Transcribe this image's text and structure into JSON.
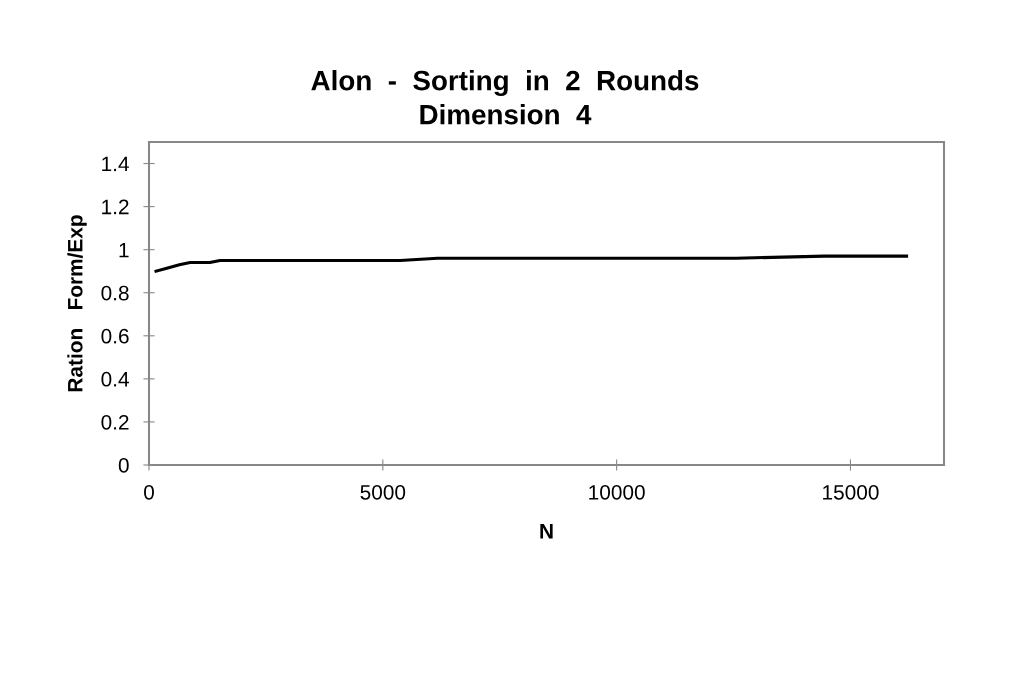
{
  "chart_data": {
    "type": "line",
    "title": "Alon  -  Sorting  in  2  Rounds\nDimension  4",
    "xlabel": "N",
    "ylabel": "Ration   Form/Exp",
    "x": [
      150,
      400,
      650,
      880,
      1300,
      1520,
      2500,
      4000,
      5370,
      6170,
      8000,
      10000,
      12550,
      14440,
      16200
    ],
    "series": [
      {
        "color": "#000000",
        "values": [
          0.9,
          0.915,
          0.93,
          0.94,
          0.94,
          0.95,
          0.95,
          0.95,
          0.95,
          0.96,
          0.96,
          0.96,
          0.96,
          0.97,
          0.97
        ]
      }
    ],
    "xlim": [
      0,
      17000
    ],
    "xticks": [
      0,
      5000,
      10000,
      15000
    ],
    "ylim": [
      0,
      1.5
    ],
    "yticks": [
      0,
      0.2,
      0.4,
      0.6,
      0.8,
      1,
      1.2,
      1.4
    ],
    "grid": false,
    "legend": false,
    "marker": "none",
    "line_style": "solid"
  }
}
